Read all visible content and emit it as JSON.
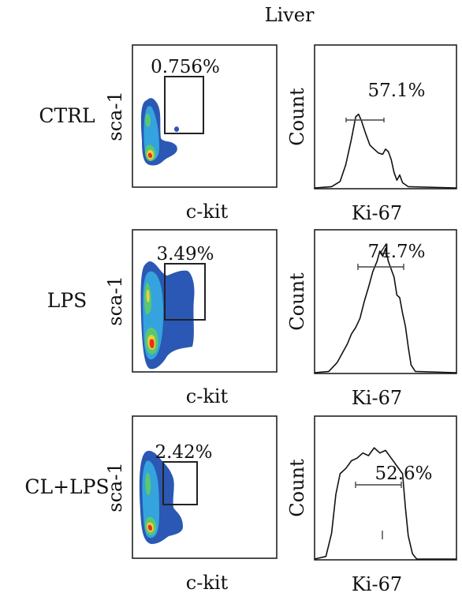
{
  "chart_data": {
    "type": "flow-cytometry-panels",
    "title": "Liver",
    "columns": [
      {
        "type": "density",
        "xlabel": "c-kit",
        "ylabel": "sca-1"
      },
      {
        "type": "histogram",
        "xlabel": "Ki-67",
        "ylabel": "Count"
      }
    ],
    "rows": [
      {
        "label": "CTRL",
        "density": {
          "gate_percent": "0.756%"
        },
        "histogram": {
          "gate_percent": "57.1%",
          "curve": [
            [
              0,
              0
            ],
            [
              0.12,
              0.01
            ],
            [
              0.18,
              0.05
            ],
            [
              0.22,
              0.18
            ],
            [
              0.26,
              0.38
            ],
            [
              0.29,
              0.55
            ],
            [
              0.31,
              0.57
            ],
            [
              0.33,
              0.52
            ],
            [
              0.36,
              0.42
            ],
            [
              0.39,
              0.33
            ],
            [
              0.42,
              0.3
            ],
            [
              0.45,
              0.27
            ],
            [
              0.48,
              0.26
            ],
            [
              0.5,
              0.3
            ],
            [
              0.52,
              0.28
            ],
            [
              0.54,
              0.22
            ],
            [
              0.56,
              0.12
            ],
            [
              0.58,
              0.06
            ],
            [
              0.6,
              0.1
            ],
            [
              0.62,
              0.04
            ],
            [
              0.66,
              0.01
            ],
            [
              1,
              0
            ]
          ]
        }
      },
      {
        "label": "LPS",
        "density": {
          "gate_percent": "3.49%"
        },
        "histogram": {
          "gate_percent": "74.7%",
          "curve": [
            [
              0,
              0
            ],
            [
              0.1,
              0.01
            ],
            [
              0.16,
              0.08
            ],
            [
              0.2,
              0.16
            ],
            [
              0.23,
              0.22
            ],
            [
              0.26,
              0.3
            ],
            [
              0.29,
              0.35
            ],
            [
              0.32,
              0.42
            ],
            [
              0.35,
              0.55
            ],
            [
              0.38,
              0.66
            ],
            [
              0.41,
              0.78
            ],
            [
              0.44,
              0.86
            ],
            [
              0.46,
              0.94
            ],
            [
              0.48,
              0.9
            ],
            [
              0.5,
              0.96
            ],
            [
              0.52,
              0.86
            ],
            [
              0.54,
              0.8
            ],
            [
              0.56,
              0.74
            ],
            [
              0.58,
              0.6
            ],
            [
              0.6,
              0.58
            ],
            [
              0.62,
              0.46
            ],
            [
              0.64,
              0.36
            ],
            [
              0.66,
              0.2
            ],
            [
              0.68,
              0.06
            ],
            [
              0.71,
              0.01
            ],
            [
              1,
              0
            ]
          ]
        }
      },
      {
        "label": "CL+LPS",
        "density": {
          "gate_percent": "2.42%"
        },
        "histogram": {
          "gate_percent": "52.6%",
          "curve": [
            [
              0,
              0
            ],
            [
              0.08,
              0.02
            ],
            [
              0.12,
              0.2
            ],
            [
              0.15,
              0.5
            ],
            [
              0.18,
              0.66
            ],
            [
              0.22,
              0.7
            ],
            [
              0.26,
              0.76
            ],
            [
              0.3,
              0.78
            ],
            [
              0.34,
              0.82
            ],
            [
              0.38,
              0.8
            ],
            [
              0.42,
              0.86
            ],
            [
              0.46,
              0.82
            ],
            [
              0.5,
              0.84
            ],
            [
              0.54,
              0.78
            ],
            [
              0.58,
              0.72
            ],
            [
              0.62,
              0.66
            ],
            [
              0.64,
              0.4
            ],
            [
              0.66,
              0.18
            ],
            [
              0.69,
              0.04
            ],
            [
              0.72,
              0.0
            ],
            [
              1,
              0
            ]
          ]
        }
      }
    ]
  },
  "colors": {
    "outer": "#1f4fb0",
    "mid": "#35a8e0",
    "inner": "#5cc96a",
    "warm": "#f2d23a",
    "hot": "#e8251f"
  }
}
